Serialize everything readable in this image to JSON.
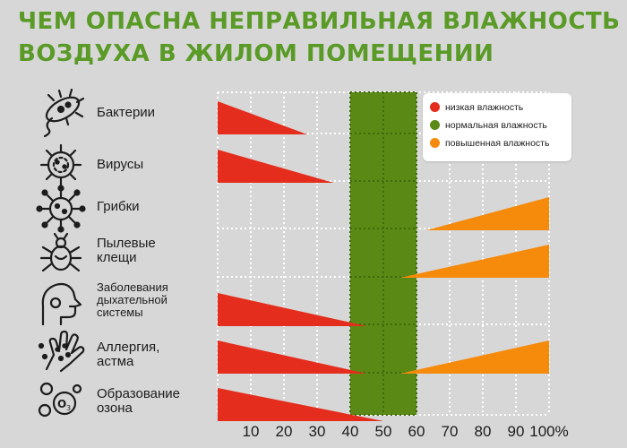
{
  "title": {
    "line1": "ЧЕМ ОПАСНА НЕПРАВИЛЬНАЯ ВЛАЖНОСТЬ",
    "line2": "ВОЗДУХА В ЖИЛОМ ПОМЕЩЕНИИ"
  },
  "legend": {
    "low": "низкая влажность",
    "normal": "нормальная влажность",
    "high": "повышенная влажность"
  },
  "colors": {
    "low": "#e42d1c",
    "normal": "#5a8a15",
    "high": "#f58a0b",
    "title": "#5a9a26",
    "background": "#d7d7d7"
  },
  "chart_data": {
    "type": "bar",
    "title": "ЧЕМ ОПАСНА НЕПРАВИЛЬНАЯ ВЛАЖНОСТЬ ВОЗДУХА В ЖИЛОМ ПОМЕЩЕНИИ",
    "xlabel": "",
    "ylabel": "",
    "x_range": [
      0,
      100
    ],
    "x_ticks": [
      "10",
      "20",
      "30",
      "40",
      "50",
      "60",
      "70",
      "80",
      "90",
      "100%"
    ],
    "grid": true,
    "legend_position": "top-right",
    "normal_range": [
      40,
      60
    ],
    "categories": [
      {
        "label": "Бактерии",
        "icon": "bacteria-icon",
        "low_range": [
          0,
          27
        ],
        "high_range": null
      },
      {
        "label": "Вирусы",
        "icon": "virus-icon",
        "low_range": [
          0,
          35
        ],
        "high_range": null
      },
      {
        "label": "Грибки",
        "icon": "fungus-icon",
        "low_range": null,
        "high_range": [
          63,
          100
        ]
      },
      {
        "label": "Пылевые\nклещи",
        "icon": "mite-icon",
        "low_range": null,
        "high_range": [
          55,
          100
        ]
      },
      {
        "label": "Заболевания\nдыхательной\nсистемы",
        "icon": "respiratory-icon",
        "low_range": [
          0,
          45
        ],
        "high_range": null
      },
      {
        "label": "Аллергия,\nастма",
        "icon": "allergy-icon",
        "low_range": [
          0,
          45
        ],
        "high_range": [
          55,
          100
        ]
      },
      {
        "label": "Образование\nозона",
        "icon": "ozone-icon",
        "low_range": [
          0,
          50
        ],
        "high_range": null
      }
    ]
  }
}
